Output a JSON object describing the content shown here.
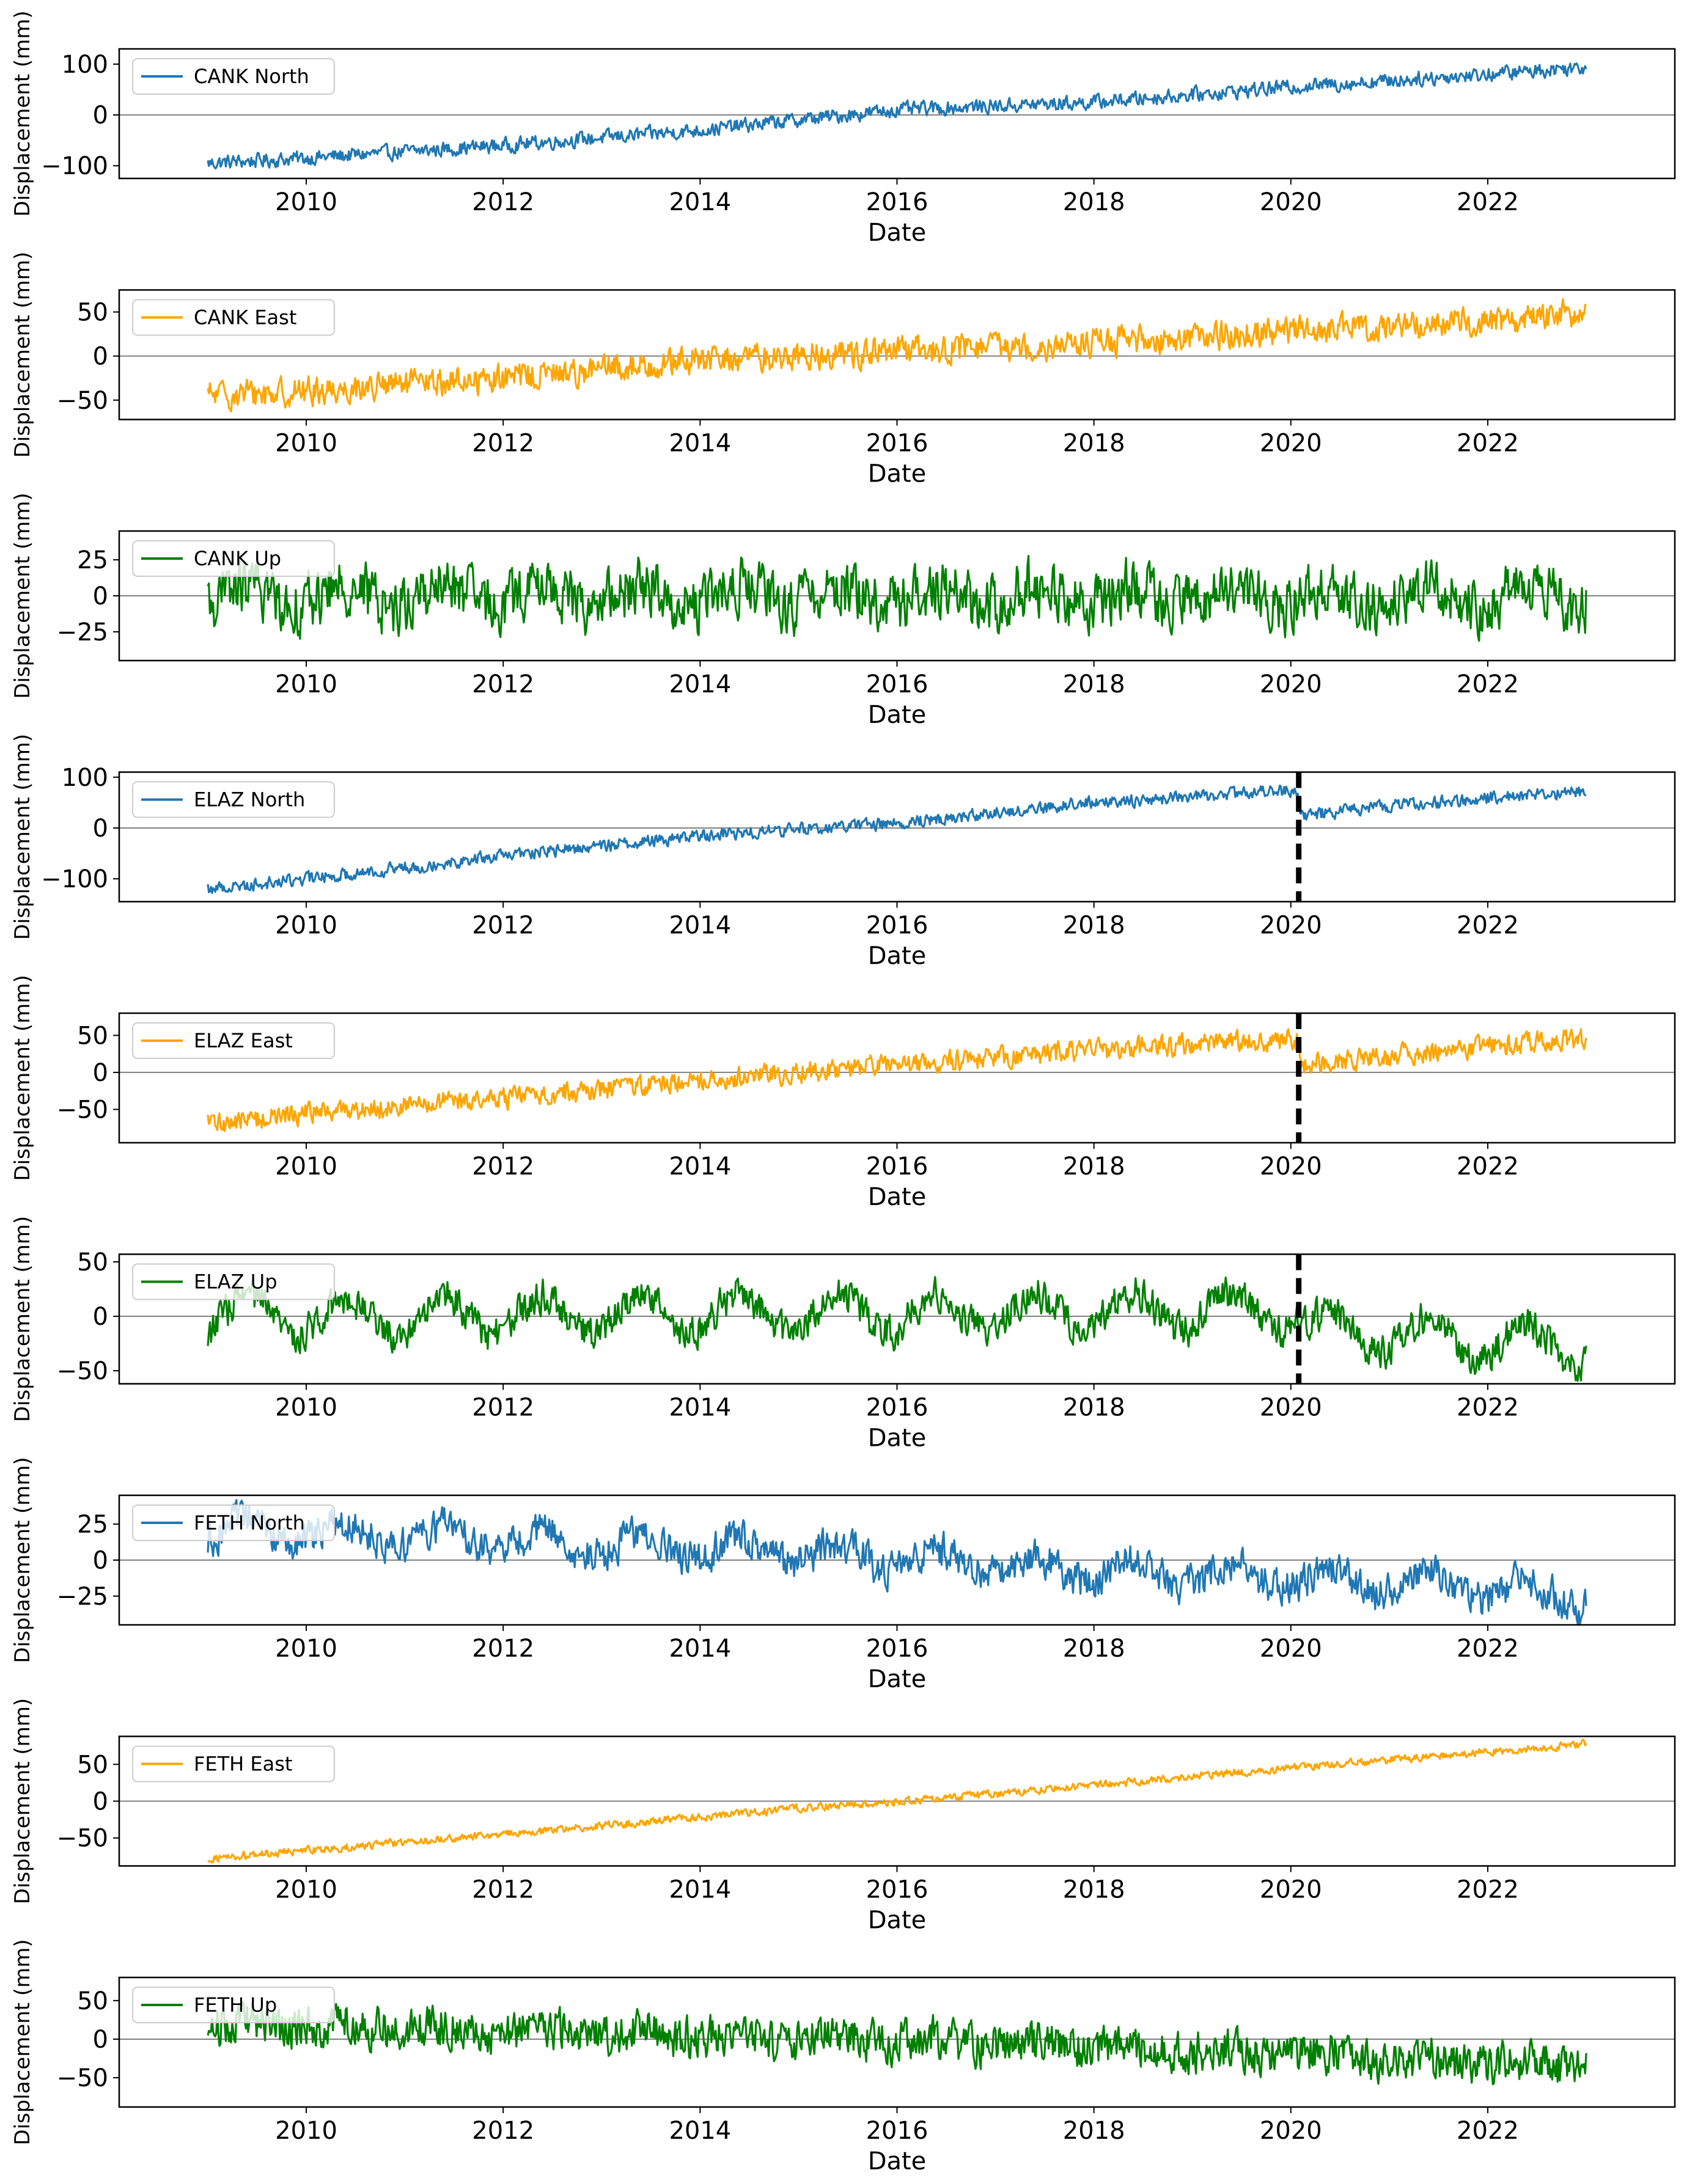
{
  "chart_data": [
    {
      "type": "line",
      "title": "",
      "xlabel": "Date",
      "ylabel": "Displacement (mm)",
      "legend": "CANK North",
      "legend_position": "top-left",
      "color": "#1f77b4",
      "x_range": [
        2009.0,
        2023.0
      ],
      "xlim": [
        2008.1,
        2023.9
      ],
      "ylim": [
        -125,
        130
      ],
      "yticks": [
        -100,
        0,
        100
      ],
      "xticks": [
        2010,
        2012,
        2014,
        2016,
        2018,
        2020,
        2022
      ],
      "trend": [
        [
          2009.0,
          -95
        ],
        [
          2010.0,
          -85
        ],
        [
          2012.0,
          -60
        ],
        [
          2014.0,
          -30
        ],
        [
          2016.0,
          10
        ],
        [
          2018.0,
          25
        ],
        [
          2020.0,
          55
        ],
        [
          2022.0,
          80
        ],
        [
          2023.0,
          95
        ]
      ],
      "noise_amplitude": 16,
      "seasonal_amplitude": 0,
      "zero_line": true
    },
    {
      "type": "line",
      "title": "",
      "xlabel": "Date",
      "ylabel": "Displacement (mm)",
      "legend": "CANK East",
      "legend_position": "top-left",
      "color": "#ffa500",
      "x_range": [
        2009.0,
        2023.0
      ],
      "xlim": [
        2008.1,
        2023.9
      ],
      "ylim": [
        -72,
        75
      ],
      "yticks": [
        -50,
        0,
        50
      ],
      "xticks": [
        2010,
        2012,
        2014,
        2016,
        2018,
        2020,
        2022
      ],
      "trend": [
        [
          2009.0,
          -45
        ],
        [
          2010.0,
          -40
        ],
        [
          2012.0,
          -25
        ],
        [
          2014.0,
          -5
        ],
        [
          2016.0,
          5
        ],
        [
          2018.0,
          15
        ],
        [
          2020.0,
          28
        ],
        [
          2022.0,
          40
        ],
        [
          2023.0,
          50
        ]
      ],
      "noise_amplitude": 18,
      "seasonal_amplitude": 0,
      "zero_line": true
    },
    {
      "type": "line",
      "title": "",
      "xlabel": "Date",
      "ylabel": "Displacement (mm)",
      "legend": "CANK Up",
      "legend_position": "top-left",
      "color": "#008000",
      "x_range": [
        2009.0,
        2023.0
      ],
      "xlim": [
        2008.1,
        2023.9
      ],
      "ylim": [
        -45,
        45
      ],
      "yticks": [
        -25,
        0,
        25
      ],
      "xticks": [
        2010,
        2012,
        2014,
        2016,
        2018,
        2020,
        2022
      ],
      "trend": [
        [
          2009.0,
          0
        ],
        [
          2023.0,
          0
        ]
      ],
      "noise_amplitude": 22,
      "seasonal_amplitude": 7,
      "zero_line": true
    },
    {
      "type": "line",
      "title": "",
      "xlabel": "Date",
      "ylabel": "Displacement (mm)",
      "legend": "ELAZ North",
      "legend_position": "top-left",
      "color": "#1f77b4",
      "x_range": [
        2009.0,
        2023.0
      ],
      "xlim": [
        2008.1,
        2023.9
      ],
      "ylim": [
        -145,
        110
      ],
      "yticks": [
        -100,
        0,
        100
      ],
      "xticks": [
        2010,
        2012,
        2014,
        2016,
        2018,
        2020,
        2022
      ],
      "trend": [
        [
          2009.0,
          -120
        ],
        [
          2010.0,
          -100
        ],
        [
          2012.0,
          -55
        ],
        [
          2014.0,
          -15
        ],
        [
          2016.0,
          10
        ],
        [
          2018.0,
          50
        ],
        [
          2020.08,
          75
        ],
        [
          2020.09,
          25
        ],
        [
          2022.0,
          60
        ],
        [
          2023.0,
          72
        ]
      ],
      "noise_amplitude": 14,
      "seasonal_amplitude": 0,
      "zero_line": true,
      "event_date": 2020.08
    },
    {
      "type": "line",
      "title": "",
      "xlabel": "Date",
      "ylabel": "Displacement (mm)",
      "legend": "ELAZ East",
      "legend_position": "top-left",
      "color": "#ffa500",
      "x_range": [
        2009.0,
        2023.0
      ],
      "xlim": [
        2008.1,
        2023.9
      ],
      "ylim": [
        -95,
        80
      ],
      "yticks": [
        -50,
        0,
        50
      ],
      "xticks": [
        2010,
        2012,
        2014,
        2016,
        2018,
        2020,
        2022
      ],
      "trend": [
        [
          2009.0,
          -70
        ],
        [
          2010.0,
          -55
        ],
        [
          2012.0,
          -35
        ],
        [
          2014.0,
          -10
        ],
        [
          2016.0,
          10
        ],
        [
          2018.0,
          30
        ],
        [
          2020.08,
          45
        ],
        [
          2020.09,
          10
        ],
        [
          2022.0,
          35
        ],
        [
          2023.0,
          45
        ]
      ],
      "noise_amplitude": 16,
      "seasonal_amplitude": 0,
      "zero_line": true,
      "event_date": 2020.08
    },
    {
      "type": "line",
      "title": "",
      "xlabel": "Date",
      "ylabel": "Displacement (mm)",
      "legend": "ELAZ Up",
      "legend_position": "top-left",
      "color": "#008000",
      "x_range": [
        2009.0,
        2023.0
      ],
      "xlim": [
        2008.1,
        2023.9
      ],
      "ylim": [
        -62,
        57
      ],
      "yticks": [
        -50,
        0,
        50
      ],
      "xticks": [
        2010,
        2012,
        2014,
        2016,
        2018,
        2020,
        2022
      ],
      "trend": [
        [
          2009.0,
          0
        ],
        [
          2020.08,
          5
        ],
        [
          2020.09,
          -10
        ],
        [
          2023.0,
          -30
        ]
      ],
      "noise_amplitude": 18,
      "seasonal_amplitude": 18,
      "zero_line": true,
      "event_date": 2020.08
    },
    {
      "type": "line",
      "title": "",
      "xlabel": "Date",
      "ylabel": "Displacement (mm)",
      "legend": "FETH North",
      "legend_position": "top-left",
      "color": "#1f77b4",
      "x_range": [
        2009.0,
        2023.0
      ],
      "xlim": [
        2008.1,
        2023.9
      ],
      "ylim": [
        -45,
        45
      ],
      "yticks": [
        -25,
        0,
        25
      ],
      "xticks": [
        2010,
        2012,
        2014,
        2016,
        2018,
        2020,
        2022
      ],
      "trend": [
        [
          2009.0,
          20
        ],
        [
          2011.0,
          18
        ],
        [
          2013.0,
          10
        ],
        [
          2015.0,
          5
        ],
        [
          2017.0,
          -3
        ],
        [
          2019.0,
          -10
        ],
        [
          2021.0,
          -15
        ],
        [
          2023.0,
          -25
        ]
      ],
      "noise_amplitude": 14,
      "seasonal_amplitude": 8,
      "zero_line": true
    },
    {
      "type": "line",
      "title": "",
      "xlabel": "Date",
      "ylabel": "Displacement (mm)",
      "legend": "FETH East",
      "legend_position": "top-left",
      "color": "#ffa500",
      "x_range": [
        2009.0,
        2023.0
      ],
      "xlim": [
        2008.1,
        2023.9
      ],
      "ylim": [
        -88,
        88
      ],
      "yticks": [
        -50,
        0,
        50
      ],
      "xticks": [
        2010,
        2012,
        2014,
        2016,
        2018,
        2020,
        2022
      ],
      "trend": [
        [
          2009.0,
          -78
        ],
        [
          2012.0,
          -45
        ],
        [
          2015.0,
          -10
        ],
        [
          2017.0,
          10
        ],
        [
          2020.0,
          45
        ],
        [
          2023.0,
          78
        ]
      ],
      "noise_amplitude": 6,
      "seasonal_amplitude": 0,
      "zero_line": true
    },
    {
      "type": "line",
      "title": "",
      "xlabel": "Date",
      "ylabel": "Displacement (mm)",
      "legend": "FETH Up",
      "legend_position": "top-left",
      "color": "#008000",
      "x_range": [
        2009.0,
        2023.0
      ],
      "xlim": [
        2008.1,
        2023.9
      ],
      "ylim": [
        -88,
        80
      ],
      "yticks": [
        -50,
        0,
        50
      ],
      "xticks": [
        2010,
        2012,
        2014,
        2016,
        2018,
        2020,
        2022
      ],
      "trend": [
        [
          2009.0,
          20
        ],
        [
          2012.0,
          12
        ],
        [
          2015.0,
          2
        ],
        [
          2018.0,
          -10
        ],
        [
          2021.0,
          -25
        ],
        [
          2023.0,
          -35
        ]
      ],
      "noise_amplitude": 30,
      "seasonal_amplitude": 5,
      "zero_line": true
    }
  ]
}
